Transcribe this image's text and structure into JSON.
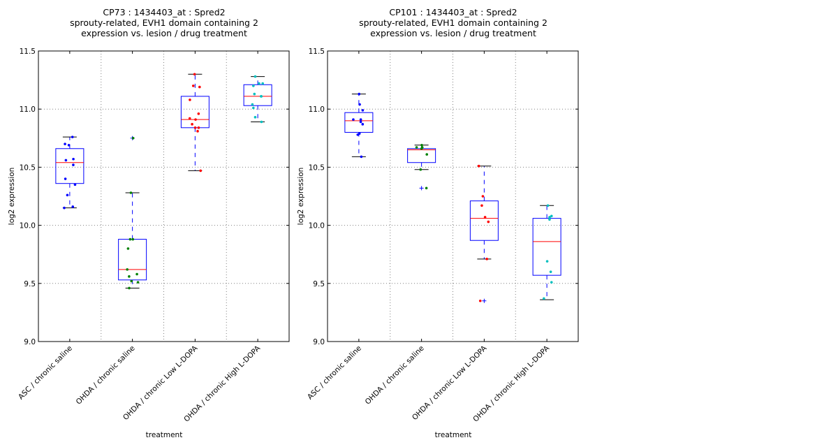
{
  "chart_data": [
    {
      "type": "boxplot",
      "title": [
        "CP73 : 1434403_at : Spred2",
        "sprouty-related, EVH1 domain containing 2",
        "expression vs. lesion / drug treatment"
      ],
      "xlabel": "treatment",
      "ylabel": "log2 expression",
      "ylim": [
        9.0,
        11.5
      ],
      "yticks": [
        "9.0",
        "9.5",
        "10.0",
        "10.5",
        "11.0",
        "11.5"
      ],
      "grid": true,
      "categories": [
        "ASC / chronic saline",
        "OHDA / chronic saline",
        "OHDA / chronic Low L-DOPA",
        "OHDA / chronic High L-DOPA"
      ],
      "boxes": [
        {
          "whisker_low": 10.15,
          "q1": 10.36,
          "median": 10.54,
          "q3": 10.66,
          "whisker_high": 10.76,
          "outliers": [],
          "color": "#0000ff",
          "points": [
            10.76,
            10.7,
            10.69,
            10.57,
            10.56,
            10.52,
            10.4,
            10.35,
            10.26,
            10.16,
            10.15
          ]
        },
        {
          "whisker_low": 9.46,
          "q1": 9.53,
          "median": 9.62,
          "q3": 9.88,
          "whisker_high": 10.28,
          "outliers": [
            10.75
          ],
          "color": "#008000",
          "points": [
            10.75,
            10.28,
            9.88,
            9.88,
            9.8,
            9.62,
            9.58,
            9.56,
            9.52,
            9.51,
            9.46
          ]
        },
        {
          "whisker_low": 10.47,
          "q1": 10.84,
          "median": 10.91,
          "q3": 11.11,
          "whisker_high": 11.3,
          "outliers": [],
          "color": "#ff0000",
          "points": [
            11.3,
            11.2,
            11.19,
            11.08,
            10.96,
            10.92,
            10.91,
            10.87,
            10.84,
            10.84,
            10.81,
            10.47
          ]
        },
        {
          "whisker_low": 10.89,
          "q1": 11.03,
          "median": 11.11,
          "q3": 11.21,
          "whisker_high": 11.28,
          "outliers": [],
          "color": "#00bfbf",
          "points": [
            11.28,
            11.22,
            11.22,
            11.2,
            11.13,
            11.11,
            11.11,
            11.04,
            11.01,
            10.93,
            10.89
          ]
        }
      ]
    },
    {
      "type": "boxplot",
      "title": [
        "CP101 : 1434403_at : Spred2",
        "sprouty-related, EVH1 domain containing 2",
        "expression vs. lesion / drug treatment"
      ],
      "xlabel": "treatment",
      "ylabel": "log2 expression",
      "ylim": [
        9.0,
        11.5
      ],
      "yticks": [
        "9.0",
        "9.5",
        "10.0",
        "10.5",
        "11.0",
        "11.5"
      ],
      "grid": true,
      "categories": [
        "ASC / chronic saline",
        "OHDA / chronic saline",
        "OHDA / chronic Low L-DOPA",
        "OHDA / chronic High L-DOPA"
      ],
      "boxes": [
        {
          "whisker_low": 10.59,
          "q1": 10.8,
          "median": 10.9,
          "q3": 10.97,
          "whisker_high": 11.13,
          "outliers": [],
          "color": "#0000ff",
          "points": [
            11.13,
            11.04,
            10.99,
            10.91,
            10.91,
            10.89,
            10.87,
            10.79,
            10.78,
            10.59
          ]
        },
        {
          "whisker_low": 10.48,
          "q1": 10.54,
          "median": 10.65,
          "q3": 10.66,
          "whisker_high": 10.69,
          "outliers": [
            10.32
          ],
          "color": "#008000",
          "points": [
            10.69,
            10.67,
            10.67,
            10.66,
            10.61,
            10.48,
            10.32
          ]
        },
        {
          "whisker_low": 9.71,
          "q1": 9.87,
          "median": 10.06,
          "q3": 10.21,
          "whisker_high": 10.51,
          "outliers": [
            9.35
          ],
          "color": "#ff0000",
          "points": [
            10.51,
            10.25,
            10.17,
            10.07,
            10.03,
            9.71,
            9.35
          ]
        },
        {
          "whisker_low": 9.36,
          "q1": 9.57,
          "median": 9.86,
          "q3": 10.06,
          "whisker_high": 10.17,
          "outliers": [],
          "color": "#00bfbf",
          "points": [
            10.17,
            10.08,
            10.07,
            10.05,
            9.69,
            9.6,
            9.51,
            9.37
          ]
        }
      ]
    }
  ]
}
